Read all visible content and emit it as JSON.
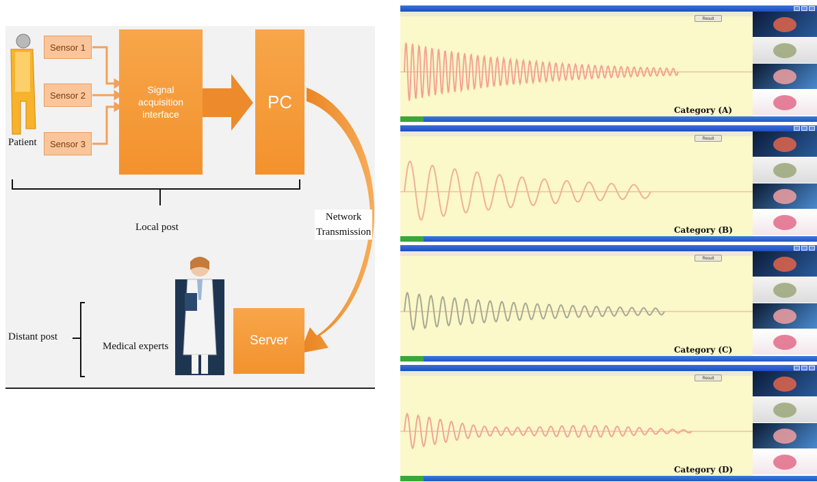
{
  "diagram": {
    "patient_label": "Patient",
    "sensors": [
      "Sensor 1",
      "Sensor 2",
      "Sensor 3"
    ],
    "acquisition_label": "Signal acquisition interface",
    "pc_label": "PC",
    "local_post_label": "Local post",
    "network_label_line1": "Network",
    "network_label_line2": "Transmission",
    "server_label": "Server",
    "medical_experts_label": "Medical experts",
    "distant_post_label": "Distant post",
    "colors": {
      "orange": "#f39a3a",
      "sensor_fill": "#fbc59b",
      "background": "#f2f2f2"
    }
  },
  "panels": [
    {
      "category": "Category (A)",
      "result_button": "Result",
      "wave_color": "#f3a392"
    },
    {
      "category": "Category (B)",
      "result_button": "Result",
      "wave_color": "#f0b09a"
    },
    {
      "category": "Category (C)",
      "result_button": "Result",
      "wave_color": "#a6a892"
    },
    {
      "category": "Category (D)",
      "result_button": "Result",
      "wave_color": "#f1a596"
    }
  ],
  "panel_colors": {
    "plot_background": "#fbf8c9",
    "title_bar": "#245edb",
    "baseline": "#e4a78c"
  }
}
